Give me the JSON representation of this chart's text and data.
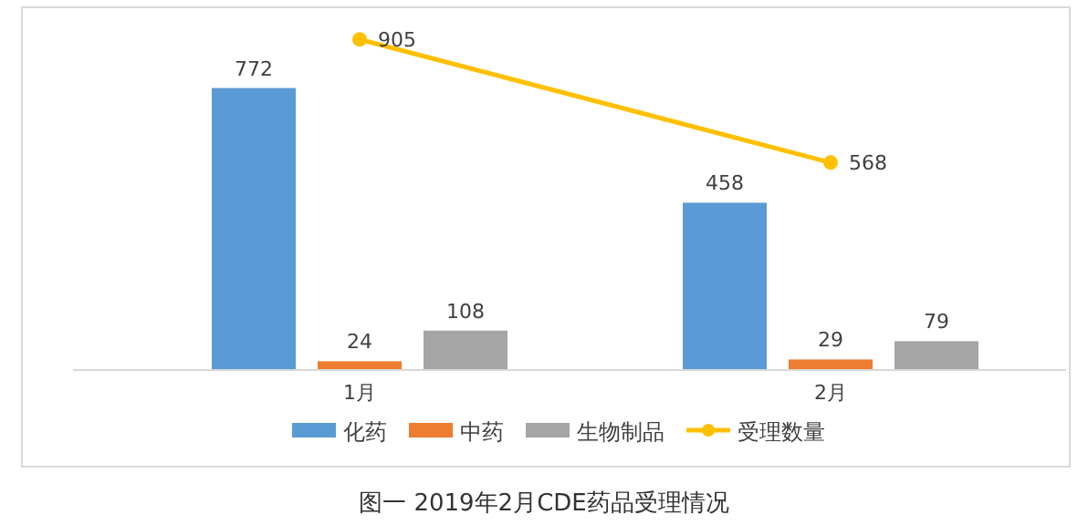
{
  "chart_data": {
    "type": "bar",
    "title": "图一 2019年2月CDE药品受理情况",
    "categories": [
      "1月",
      "2月"
    ],
    "series": [
      {
        "name": "化药",
        "color": "#5b9bd5",
        "values": [
          772,
          458
        ]
      },
      {
        "name": "中药",
        "color": "#ed7d31",
        "values": [
          24,
          29
        ]
      },
      {
        "name": "生物制品",
        "color": "#a5a5a5",
        "values": [
          108,
          79
        ]
      },
      {
        "name": "受理数量",
        "type": "line",
        "color": "#ffc000",
        "values": [
          905,
          568
        ]
      }
    ],
    "data_labels": true,
    "marker": "circle",
    "legend": "bottom"
  }
}
